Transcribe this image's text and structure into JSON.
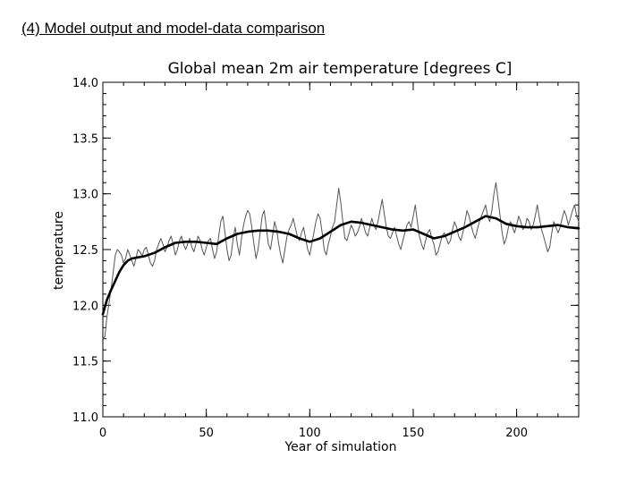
{
  "slide": {
    "title": "(4) Model output and model-data comparison"
  },
  "chart_data": {
    "type": "line",
    "title": "Global mean 2m air temperature [degrees C]",
    "xlabel": "Year of simulation",
    "ylabel": "temperature",
    "xlim": [
      0,
      230
    ],
    "ylim": [
      11.0,
      14.0
    ],
    "x_ticks": [
      0,
      50,
      100,
      150,
      200
    ],
    "y_ticks": [
      11.0,
      11.5,
      12.0,
      12.5,
      13.0,
      13.5,
      14.0
    ],
    "x_tick_labels": [
      "0",
      "50",
      "100",
      "150",
      "200"
    ],
    "y_tick_labels": [
      "11.0",
      "11.5",
      "12.0",
      "12.5",
      "13.0",
      "13.5",
      "14.0"
    ],
    "grid": false,
    "legend": "none",
    "series": [
      {
        "style": "thin",
        "color": "#555555",
        "x": [
          0,
          1,
          2,
          3,
          4,
          5,
          6,
          7,
          8,
          9,
          10,
          11,
          12,
          13,
          14,
          15,
          16,
          17,
          18,
          19,
          20,
          21,
          22,
          23,
          24,
          25,
          26,
          27,
          28,
          29,
          30,
          31,
          32,
          33,
          34,
          35,
          36,
          37,
          38,
          39,
          40,
          41,
          42,
          43,
          44,
          45,
          46,
          47,
          48,
          49,
          50,
          51,
          52,
          53,
          54,
          55,
          56,
          57,
          58,
          59,
          60,
          61,
          62,
          63,
          64,
          65,
          66,
          67,
          68,
          69,
          70,
          71,
          72,
          73,
          74,
          75,
          76,
          77,
          78,
          79,
          80,
          81,
          82,
          83,
          84,
          85,
          86,
          87,
          88,
          89,
          90,
          91,
          92,
          93,
          94,
          95,
          96,
          97,
          98,
          99,
          100,
          101,
          102,
          103,
          104,
          105,
          106,
          107,
          108,
          109,
          110,
          111,
          112,
          113,
          114,
          115,
          116,
          117,
          118,
          119,
          120,
          121,
          122,
          123,
          124,
          125,
          126,
          127,
          128,
          129,
          130,
          131,
          132,
          133,
          134,
          135,
          136,
          137,
          138,
          139,
          140,
          141,
          142,
          143,
          144,
          145,
          146,
          147,
          148,
          149,
          150,
          151,
          152,
          153,
          154,
          155,
          156,
          157,
          158,
          159,
          160,
          161,
          162,
          163,
          164,
          165,
          166,
          167,
          168,
          169,
          170,
          171,
          172,
          173,
          174,
          175,
          176,
          177,
          178,
          179,
          180,
          181,
          182,
          183,
          184,
          185,
          186,
          187,
          188,
          189,
          190,
          191,
          192,
          193,
          194,
          195,
          196,
          197,
          198,
          199,
          200,
          201,
          202,
          203,
          204,
          205,
          206,
          207,
          208,
          209,
          210,
          211,
          212,
          213,
          214,
          215,
          216,
          217,
          218,
          219,
          220,
          221,
          222,
          223,
          224,
          225,
          226,
          227,
          228,
          229,
          230
        ],
        "y": [
          11.7,
          11.72,
          11.9,
          12.02,
          12.15,
          12.3,
          12.45,
          12.5,
          12.48,
          12.45,
          12.38,
          12.42,
          12.5,
          12.45,
          12.4,
          12.35,
          12.42,
          12.5,
          12.48,
          12.44,
          12.5,
          12.52,
          12.45,
          12.38,
          12.35,
          12.4,
          12.5,
          12.55,
          12.6,
          12.55,
          12.48,
          12.52,
          12.58,
          12.62,
          12.55,
          12.45,
          12.5,
          12.58,
          12.62,
          12.55,
          12.5,
          12.55,
          12.6,
          12.52,
          12.48,
          12.55,
          12.62,
          12.58,
          12.5,
          12.45,
          12.52,
          12.58,
          12.6,
          12.5,
          12.42,
          12.48,
          12.62,
          12.75,
          12.8,
          12.65,
          12.5,
          12.4,
          12.45,
          12.6,
          12.7,
          12.55,
          12.45,
          12.6,
          12.72,
          12.8,
          12.85,
          12.82,
          12.7,
          12.55,
          12.42,
          12.5,
          12.65,
          12.8,
          12.85,
          12.7,
          12.55,
          12.5,
          12.62,
          12.75,
          12.68,
          12.55,
          12.45,
          12.38,
          12.5,
          12.62,
          12.68,
          12.72,
          12.78,
          12.7,
          12.62,
          12.58,
          12.65,
          12.7,
          12.6,
          12.5,
          12.45,
          12.55,
          12.65,
          12.75,
          12.82,
          12.78,
          12.65,
          12.5,
          12.45,
          12.55,
          12.62,
          12.7,
          12.75,
          12.9,
          13.05,
          12.92,
          12.75,
          12.6,
          12.58,
          12.65,
          12.72,
          12.68,
          12.62,
          12.65,
          12.7,
          12.78,
          12.72,
          12.65,
          12.62,
          12.7,
          12.78,
          12.72,
          12.68,
          12.75,
          12.85,
          12.95,
          12.82,
          12.7,
          12.62,
          12.6,
          12.65,
          12.7,
          12.62,
          12.55,
          12.5,
          12.58,
          12.65,
          12.72,
          12.75,
          12.7,
          12.8,
          12.9,
          12.75,
          12.62,
          12.55,
          12.5,
          12.58,
          12.65,
          12.68,
          12.6,
          12.55,
          12.45,
          12.48,
          12.55,
          12.62,
          12.65,
          12.6,
          12.55,
          12.58,
          12.68,
          12.75,
          12.7,
          12.62,
          12.58,
          12.65,
          12.75,
          12.85,
          12.8,
          12.72,
          12.65,
          12.6,
          12.68,
          12.75,
          12.8,
          12.85,
          12.9,
          12.8,
          12.75,
          12.85,
          13.0,
          13.1,
          12.95,
          12.8,
          12.65,
          12.55,
          12.6,
          12.7,
          12.75,
          12.7,
          12.65,
          12.72,
          12.8,
          12.75,
          12.68,
          12.7,
          12.78,
          12.75,
          12.68,
          12.72,
          12.8,
          12.9,
          12.78,
          12.68,
          12.62,
          12.55,
          12.48,
          12.52,
          12.65,
          12.75,
          12.7,
          12.65,
          12.7,
          12.78,
          12.85,
          12.8,
          12.72,
          12.78,
          12.85,
          12.9,
          12.8,
          12.75
        ]
      },
      {
        "style": "thick",
        "color": "#000000",
        "x": [
          0,
          2,
          4,
          6,
          8,
          10,
          12,
          14,
          17,
          20,
          25,
          30,
          35,
          40,
          45,
          50,
          55,
          60,
          65,
          70,
          75,
          80,
          85,
          90,
          95,
          100,
          105,
          110,
          115,
          120,
          125,
          130,
          135,
          140,
          145,
          150,
          155,
          160,
          165,
          170,
          175,
          180,
          185,
          190,
          195,
          200,
          205,
          210,
          215,
          220,
          225,
          230
        ],
        "y": [
          11.92,
          12.05,
          12.14,
          12.22,
          12.3,
          12.36,
          12.4,
          12.42,
          12.43,
          12.44,
          12.47,
          12.52,
          12.56,
          12.57,
          12.57,
          12.56,
          12.55,
          12.6,
          12.64,
          12.66,
          12.67,
          12.67,
          12.66,
          12.64,
          12.6,
          12.57,
          12.6,
          12.66,
          12.72,
          12.75,
          12.74,
          12.72,
          12.7,
          12.68,
          12.67,
          12.68,
          12.64,
          12.6,
          12.62,
          12.66,
          12.7,
          12.75,
          12.8,
          12.78,
          12.73,
          12.71,
          12.7,
          12.7,
          12.71,
          12.72,
          12.7,
          12.69
        ]
      }
    ]
  }
}
